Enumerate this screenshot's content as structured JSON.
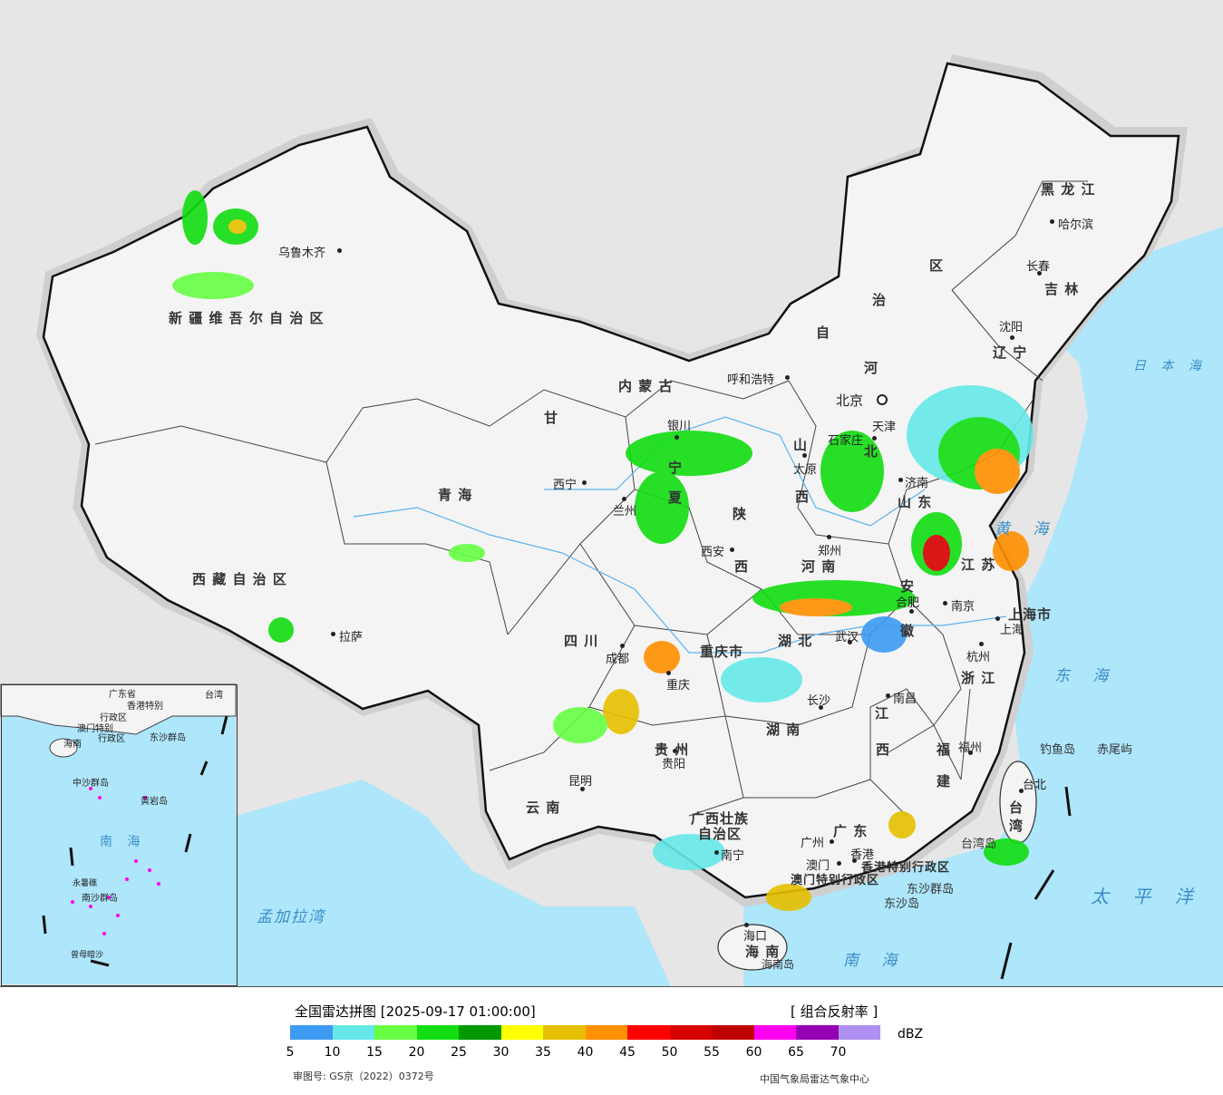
{
  "legend": {
    "title": "全国雷达拼图 [2025-09-17 01:00:00]",
    "product": "[ 组合反射率 ]",
    "unit": "dBZ",
    "ticks": [
      "5",
      "10",
      "15",
      "20",
      "25",
      "30",
      "35",
      "40",
      "45",
      "50",
      "55",
      "60",
      "65",
      "70"
    ],
    "colors": [
      "#3d9bf2",
      "#66e8e8",
      "#66ff44",
      "#11dd11",
      "#009900",
      "#ffff00",
      "#e6c000",
      "#ff9000",
      "#ff0000",
      "#d70000",
      "#c00000",
      "#ff00f0",
      "#9600b4",
      "#ad90f0"
    ],
    "review_no": "审图号: GS京（2022）0372号",
    "credit": "中国气象局雷达气象中心"
  },
  "map": {
    "regions": [
      {
        "id": "xinjiang",
        "label": "新 疆 维 吾 尔 自 治 区"
      },
      {
        "id": "xizang",
        "label": "西 藏 自 治 区"
      },
      {
        "id": "qinghai",
        "label": "青  海"
      },
      {
        "id": "gansu",
        "label": "甘"
      },
      {
        "id": "neimenggu",
        "label": "内    蒙    古"
      },
      {
        "id": "neimenggu2",
        "label": "自"
      },
      {
        "id": "neimenggu3",
        "label": "治"
      },
      {
        "id": "neimenggu4",
        "label": "区"
      },
      {
        "id": "heilongjiang",
        "label": "黑  龙  江"
      },
      {
        "id": "jilin",
        "label": "吉  林"
      },
      {
        "id": "liaoning",
        "label": "辽 宁"
      },
      {
        "id": "hebei",
        "label": "河"
      },
      {
        "id": "hebei2",
        "label": "北"
      },
      {
        "id": "shanxi",
        "label": "山"
      },
      {
        "id": "shanxi2",
        "label": "西"
      },
      {
        "id": "shandong",
        "label": "山  东"
      },
      {
        "id": "henan",
        "label": "河  南"
      },
      {
        "id": "shaanxi",
        "label": "陕"
      },
      {
        "id": "shaanxi2",
        "label": "西"
      },
      {
        "id": "ningxia",
        "label": "宁"
      },
      {
        "id": "ningxia2",
        "label": "夏"
      },
      {
        "id": "jiangsu",
        "label": "江  苏"
      },
      {
        "id": "anhui",
        "label": "安"
      },
      {
        "id": "anhui2",
        "label": "徽"
      },
      {
        "id": "hubei",
        "label": "湖  北"
      },
      {
        "id": "sichuan",
        "label": "四  川"
      },
      {
        "id": "chongqing",
        "label": "重庆市"
      },
      {
        "id": "zhejiang",
        "label": "浙 江"
      },
      {
        "id": "jiangxi",
        "label": "江"
      },
      {
        "id": "jiangxi2",
        "label": "西"
      },
      {
        "id": "hunan",
        "label": "湖  南"
      },
      {
        "id": "guizhou",
        "label": "贵  州"
      },
      {
        "id": "fujian",
        "label": "福"
      },
      {
        "id": "fujian2",
        "label": "建"
      },
      {
        "id": "yunnan",
        "label": "云  南"
      },
      {
        "id": "guangxi",
        "label": "广西壮族"
      },
      {
        "id": "guangxi2",
        "label": "自治区"
      },
      {
        "id": "guangdong",
        "label": "广  东"
      },
      {
        "id": "taiwan",
        "label": "台"
      },
      {
        "id": "taiwan2",
        "label": "湾"
      },
      {
        "id": "hainan",
        "label": "海  南"
      },
      {
        "id": "shanghai",
        "label": "上海市"
      },
      {
        "id": "tianjin",
        "label": "天津"
      },
      {
        "id": "hongkong",
        "label": "香港特别行政区"
      },
      {
        "id": "macau",
        "label": "澳门特别行政区"
      }
    ],
    "cities": [
      "乌鲁木齐",
      "拉萨",
      "西宁",
      "兰州",
      "银川",
      "呼和浩特",
      "北京",
      "石家庄",
      "太原",
      "西安",
      "郑州",
      "济南",
      "合肥",
      "南京",
      "上海",
      "杭州",
      "武汉",
      "长沙",
      "南昌",
      "福州",
      "台北",
      "成都",
      "重庆",
      "贵阳",
      "昆明",
      "南宁",
      "广州",
      "澳门",
      "香港",
      "海口",
      "哈尔滨",
      "长春",
      "沈阳"
    ],
    "seas": [
      "日  本  海",
      "黄  海",
      "东  海",
      "太  平  洋",
      "南  海",
      "孟加拉湾"
    ],
    "islands": [
      "钓鱼岛",
      "赤尾屿",
      "台湾岛",
      "东沙群岛",
      "东沙岛",
      "海南岛"
    ],
    "inset": {
      "labels": [
        "广东省",
        "香港特别",
        "行政区",
        "海南",
        "东沙群岛",
        "中沙群岛",
        "黄岩岛",
        "南  海",
        "南沙群岛",
        "台湾",
        "永暑礁",
        "曾母暗沙",
        "澳门特别",
        "行政区"
      ]
    }
  }
}
